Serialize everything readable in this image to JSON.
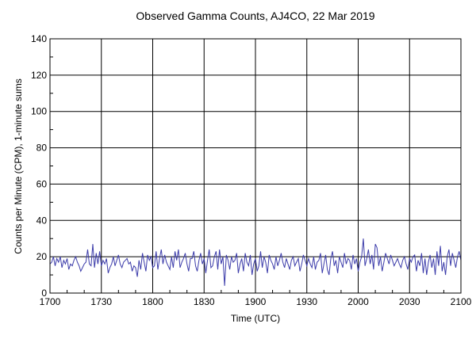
{
  "chart_data": {
    "type": "line",
    "title": "Observed Gamma Counts, AJ4CO, 22 Mar 2019",
    "xlabel": "Time (UTC)",
    "ylabel": "Counts per Minute (CPM), 1-minute sums",
    "x_tick_labels": [
      "1700",
      "1730",
      "1800",
      "1830",
      "1900",
      "1930",
      "2000",
      "2030",
      "2100"
    ],
    "y_ticks": [
      0,
      20,
      40,
      60,
      80,
      100,
      120,
      140
    ],
    "ylim": [
      0,
      140
    ],
    "xlim": [
      "17:00",
      "21:00"
    ],
    "time_start": "17:00",
    "interval_minutes": 1,
    "grid": true,
    "line_color": "#3c3caa",
    "series": [
      {
        "values": [
          16,
          17,
          20,
          15,
          19,
          17,
          20,
          14,
          18,
          16,
          19,
          13,
          16,
          15,
          18,
          20,
          17,
          15,
          12,
          14,
          16,
          17,
          24,
          16,
          15,
          27,
          14,
          22,
          16,
          23,
          15,
          18,
          16,
          19,
          11,
          14,
          16,
          20,
          15,
          18,
          21,
          16,
          14,
          17,
          18,
          19,
          16,
          17,
          12,
          15,
          14,
          9,
          18,
          13,
          22,
          17,
          12,
          21,
          18,
          20,
          14,
          15,
          23,
          13,
          19,
          24,
          16,
          21,
          17,
          15,
          13,
          20,
          14,
          23,
          18,
          24,
          14,
          17,
          19,
          22,
          16,
          12,
          19,
          19,
          23,
          15,
          12,
          18,
          22,
          16,
          19,
          11,
          18,
          24,
          14,
          15,
          20,
          23,
          13,
          24,
          16,
          20,
          4,
          21,
          18,
          13,
          20,
          17,
          18,
          22,
          11,
          16,
          19,
          12,
          22,
          17,
          15,
          21,
          10,
          16,
          19,
          12,
          15,
          23,
          14,
          20,
          17,
          11,
          21,
          18,
          16,
          13,
          20,
          15,
          18,
          22,
          17,
          14,
          19,
          16,
          13,
          18,
          20,
          15,
          17,
          19,
          12,
          16,
          21,
          18,
          15,
          19,
          16,
          14,
          20,
          13,
          17,
          18,
          22,
          11,
          16,
          21,
          13,
          10,
          19,
          23,
          15,
          18,
          11,
          20,
          17,
          14,
          22,
          16,
          19,
          18,
          13,
          21,
          16,
          19,
          12,
          17,
          20,
          30,
          15,
          19,
          24,
          16,
          21,
          13,
          27,
          25,
          15,
          20,
          12,
          17,
          22,
          19,
          16,
          21,
          18,
          15,
          17,
          19,
          16,
          14,
          18,
          20,
          16,
          13,
          19,
          17,
          20,
          21,
          12,
          18,
          15,
          22,
          11,
          19,
          10,
          17,
          21,
          14,
          19,
          10,
          23,
          15,
          26,
          12,
          17,
          10,
          20,
          24,
          15,
          22,
          18,
          14,
          20,
          23,
          18
        ]
      }
    ]
  }
}
